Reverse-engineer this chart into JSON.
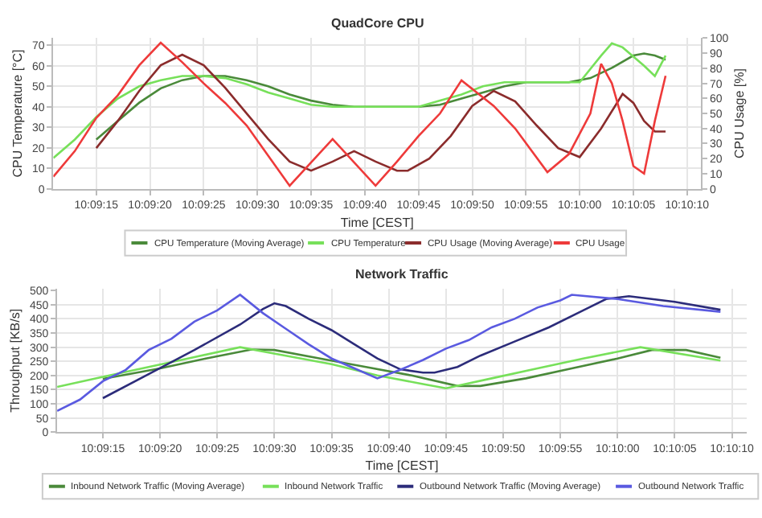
{
  "chart_data": [
    {
      "type": "line",
      "title": "QuadCore CPU",
      "xlabel": "Time [CEST]",
      "ylabel": "CPU Temperature [°C]",
      "y2label": "CPU Usage [%]",
      "xlim": [
        10.153056,
        10.169806
      ],
      "xticks": [
        {
          "value": 10.154167,
          "label": "10:09:15"
        },
        {
          "value": 10.155556,
          "label": "10:09:20"
        },
        {
          "value": 10.156944,
          "label": "10:09:25"
        },
        {
          "value": 10.158333,
          "label": "10:09:30"
        },
        {
          "value": 10.159722,
          "label": "10:09:35"
        },
        {
          "value": 10.161111,
          "label": "10:09:40"
        },
        {
          "value": 10.1625,
          "label": "10:09:45"
        },
        {
          "value": 10.163889,
          "label": "10:09:50"
        },
        {
          "value": 10.165278,
          "label": "10:09:55"
        },
        {
          "value": 10.166667,
          "label": "10:10:00"
        },
        {
          "value": 10.168056,
          "label": "10:10:05"
        },
        {
          "value": 10.169444,
          "label": "10:10:10"
        }
      ],
      "ylim": [
        0,
        73.5
      ],
      "yticks": [
        0,
        10,
        20,
        30,
        40,
        50,
        60,
        70
      ],
      "y2lim": [
        0,
        100
      ],
      "y2ticks": [
        0,
        10,
        20,
        30,
        40,
        50,
        60,
        70,
        80,
        90,
        100
      ],
      "grid": true,
      "legend": "bottom",
      "series": [
        {
          "name": "CPU Temperature (Moving Average)",
          "color": "#4a8a3a",
          "x": [
            10.154167,
            10.154722,
            10.155278,
            10.155833,
            10.156389,
            10.156944,
            10.1575,
            10.158056,
            10.158611,
            10.159167,
            10.159722,
            10.160278,
            10.160833,
            10.161389,
            10.161944,
            10.1625,
            10.163056,
            10.163611,
            10.164167,
            10.164722,
            10.165278,
            10.165833,
            10.166389,
            10.166944,
            10.1675,
            10.168056,
            10.168333,
            10.168611,
            10.168889
          ],
          "values": [
            24,
            33,
            42,
            49,
            53,
            55,
            55,
            53,
            50,
            46,
            43,
            41,
            40,
            40,
            40,
            40,
            41,
            44,
            47,
            50,
            52,
            52,
            52,
            54,
            59,
            65,
            66,
            65,
            63
          ]
        },
        {
          "name": "CPU Temperature",
          "color": "#77e05a",
          "x": [
            10.153056,
            10.153611,
            10.154167,
            10.154722,
            10.155278,
            10.155833,
            10.156389,
            10.156944,
            10.1575,
            10.158056,
            10.158611,
            10.159167,
            10.159722,
            10.160278,
            10.160833,
            10.161389,
            10.161944,
            10.1625,
            10.163056,
            10.163611,
            10.164167,
            10.164722,
            10.165278,
            10.165833,
            10.166389,
            10.166667,
            10.167222,
            10.1675,
            10.167778,
            10.168333,
            10.168611,
            10.168889
          ],
          "values": [
            15,
            24,
            35,
            44,
            50,
            53,
            55,
            55,
            54,
            51,
            47,
            44,
            41,
            40,
            40,
            40,
            40,
            40,
            43,
            46,
            50,
            52,
            52,
            52,
            52,
            52,
            65,
            71,
            69,
            60,
            55,
            65
          ]
        },
        {
          "name": "CPU Usage (Moving Average)",
          "color": "#8b2c2c",
          "axis": "y2",
          "x": [
            10.154167,
            10.154722,
            10.155278,
            10.155833,
            10.156389,
            10.156944,
            10.1575,
            10.158056,
            10.158611,
            10.159167,
            10.159722,
            10.160278,
            10.160833,
            10.161389,
            10.161944,
            10.162222,
            10.162778,
            10.163333,
            10.163889,
            10.164444,
            10.165,
            10.165556,
            10.166111,
            10.166667,
            10.167222,
            10.167778,
            10.168056,
            10.168333,
            10.168611,
            10.168889
          ],
          "values": [
            27,
            45,
            65,
            82,
            89,
            82,
            67,
            50,
            33,
            18,
            12,
            18,
            25,
            18,
            12,
            12,
            20,
            35,
            55,
            65,
            58,
            42,
            27,
            21,
            40,
            63,
            57,
            45,
            38,
            38
          ]
        },
        {
          "name": "CPU Usage",
          "color": "#ee3a3a",
          "axis": "y2",
          "x": [
            10.153056,
            10.153611,
            10.154167,
            10.154722,
            10.155278,
            10.155833,
            10.156389,
            10.156944,
            10.1575,
            10.158056,
            10.158611,
            10.159167,
            10.160278,
            10.161389,
            10.161944,
            10.1625,
            10.163056,
            10.163611,
            10.164444,
            10.165,
            10.165833,
            10.166389,
            10.166944,
            10.167222,
            10.1675,
            10.167778,
            10.168056,
            10.168333,
            10.168611,
            10.168889
          ],
          "values": [
            8,
            25,
            47,
            62,
            82,
            97,
            84,
            70,
            57,
            42,
            22,
            2,
            33,
            2,
            18,
            35,
            50,
            72,
            55,
            40,
            11,
            23,
            50,
            83,
            70,
            45,
            15,
            10,
            45,
            75
          ]
        }
      ]
    },
    {
      "type": "line",
      "title": "Network Traffic",
      "xlabel": "Time [CEST]",
      "ylabel": "Throughput [KB/s]",
      "xlim": [
        10.153056,
        10.169806
      ],
      "xticks": [
        {
          "value": 10.154167,
          "label": "10:09:15"
        },
        {
          "value": 10.155556,
          "label": "10:09:20"
        },
        {
          "value": 10.156944,
          "label": "10:09:25"
        },
        {
          "value": 10.158333,
          "label": "10:09:30"
        },
        {
          "value": 10.159722,
          "label": "10:09:35"
        },
        {
          "value": 10.161111,
          "label": "10:09:40"
        },
        {
          "value": 10.1625,
          "label": "10:09:45"
        },
        {
          "value": 10.163889,
          "label": "10:09:50"
        },
        {
          "value": 10.165278,
          "label": "10:09:55"
        },
        {
          "value": 10.166667,
          "label": "10:10:00"
        },
        {
          "value": 10.168056,
          "label": "10:10:05"
        },
        {
          "value": 10.169444,
          "label": "10:10:10"
        }
      ],
      "ylim": [
        0,
        505
      ],
      "yticks": [
        0,
        50,
        100,
        150,
        200,
        250,
        300,
        350,
        400,
        450,
        500
      ],
      "grid": true,
      "legend": "bottom",
      "series": [
        {
          "name": "Inbound Network Traffic (Moving Average)",
          "color": "#4a8a3a",
          "x": [
            10.154167,
            10.155556,
            10.156667,
            10.157778,
            10.158333,
            10.159444,
            10.160556,
            10.161667,
            10.162778,
            10.163333,
            10.164444,
            10.165556,
            10.166667,
            10.1675,
            10.168333,
            10.169167
          ],
          "values": [
            188,
            225,
            260,
            292,
            290,
            260,
            230,
            200,
            163,
            163,
            190,
            225,
            260,
            290,
            290,
            263
          ]
        },
        {
          "name": "Inbound Network Traffic",
          "color": "#77e05a",
          "x": [
            10.153056,
            10.154167,
            10.155278,
            10.156389,
            10.1575,
            10.158611,
            10.159722,
            10.160833,
            10.161944,
            10.1625,
            10.163611,
            10.164722,
            10.165833,
            10.167222,
            10.169167
          ],
          "values": [
            160,
            195,
            230,
            265,
            300,
            270,
            240,
            200,
            170,
            155,
            190,
            225,
            260,
            300,
            253
          ]
        },
        {
          "name": "Outbound Network Traffic (Moving Average)",
          "color": "#2c2c7a",
          "x": [
            10.154167,
            10.155278,
            10.156389,
            10.1575,
            10.158056,
            10.158333,
            10.158611,
            10.159167,
            10.159722,
            10.160278,
            10.160833,
            10.161389,
            10.161944,
            10.162222,
            10.162778,
            10.163333,
            10.164167,
            10.165,
            10.165833,
            10.166389,
            10.166944,
            10.168056,
            10.169167
          ],
          "values": [
            120,
            205,
            290,
            380,
            435,
            455,
            445,
            400,
            360,
            310,
            260,
            222,
            210,
            210,
            230,
            270,
            320,
            370,
            430,
            470,
            480,
            460,
            432
          ]
        },
        {
          "name": "Outbound Network Traffic",
          "color": "#5a5ae0",
          "x": [
            10.153056,
            10.153611,
            10.154167,
            10.154722,
            10.155278,
            10.155833,
            10.156389,
            10.156944,
            10.1575,
            10.158056,
            10.158611,
            10.159167,
            10.159722,
            10.160278,
            10.160833,
            10.161389,
            10.161944,
            10.1625,
            10.163056,
            10.163611,
            10.164167,
            10.164722,
            10.165278,
            10.165556,
            10.166667,
            10.167778,
            10.169167
          ],
          "values": [
            75,
            115,
            180,
            220,
            290,
            330,
            390,
            430,
            485,
            420,
            365,
            310,
            260,
            225,
            190,
            220,
            255,
            295,
            325,
            370,
            400,
            440,
            465,
            485,
            470,
            445,
            425
          ]
        }
      ]
    }
  ]
}
